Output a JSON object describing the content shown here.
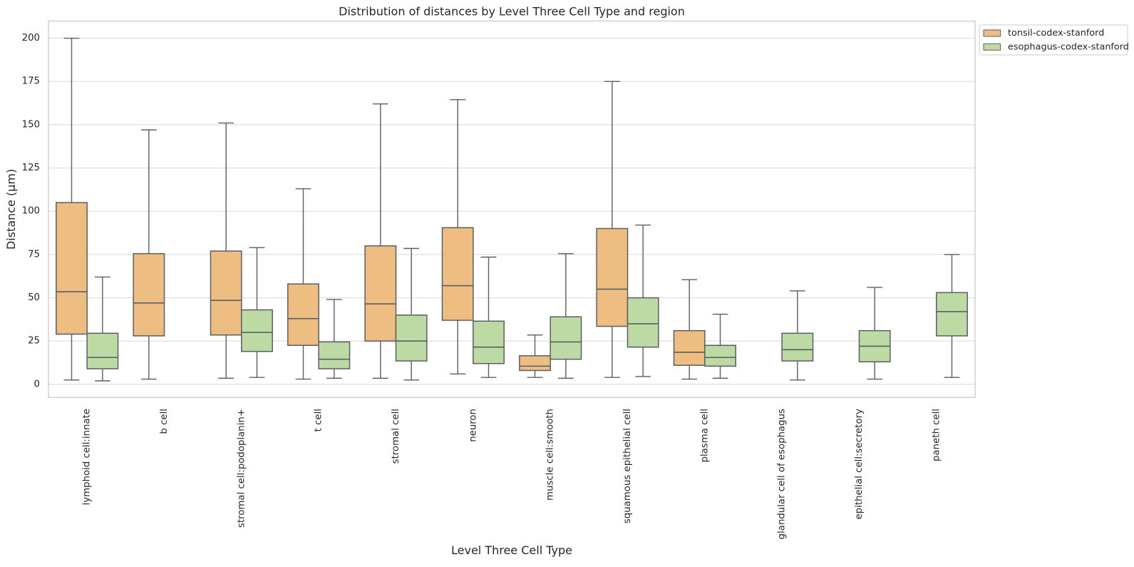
{
  "title": "Distribution of distances by Level Three Cell Type and region",
  "xlabel": "Level Three Cell Type",
  "ylabel": "Distance (μm)",
  "legend": {
    "items": [
      {
        "label": "tonsil-codex-stanford",
        "color": "#edbd82"
      },
      {
        "label": "esophagus-codex-stanford",
        "color": "#bedaa4"
      }
    ]
  },
  "colors": {
    "tonsil_fill": "#edbd82",
    "esophagus_fill": "#bedaa4",
    "box_edge": "#5a5f64",
    "grid": "#dcdcdc",
    "spine": "#c9cccd",
    "text": "#262626"
  },
  "chart_data": {
    "type": "box",
    "title": "Distribution of distances by Level Three Cell Type and region",
    "xlabel": "Level Three Cell Type",
    "ylabel": "Distance (μm)",
    "grid": "horizontal",
    "legend_position": "upper right outside",
    "ylim": [
      -7.6,
      209.9
    ],
    "yticks": [
      0,
      25,
      50,
      75,
      100,
      125,
      150,
      175,
      200
    ],
    "categories": [
      "lymphoid cell:innate",
      "b cell",
      "stromal cell:podoplanin+",
      "t cell",
      "stromal cell",
      "neuron",
      "muscle cell:smooth",
      "squamous epithelial cell",
      "plasma cell",
      "glandular cell of esophagus",
      "epithelial cell:secretory",
      "paneth cell"
    ],
    "series": [
      {
        "name": "tonsil-codex-stanford",
        "fill": "#edbd82",
        "boxes": [
          {
            "whislo": 2.5,
            "q1": 29,
            "med": 53.5,
            "q3": 105,
            "whishi": 200
          },
          {
            "whislo": 3,
            "q1": 28,
            "med": 47,
            "q3": 75.5,
            "whishi": 147
          },
          {
            "whislo": 3.5,
            "q1": 28.5,
            "med": 48.5,
            "q3": 77,
            "whishi": 151
          },
          {
            "whislo": 3,
            "q1": 22.5,
            "med": 38,
            "q3": 58,
            "whishi": 113
          },
          {
            "whislo": 3.5,
            "q1": 25,
            "med": 46.5,
            "q3": 80,
            "whishi": 162
          },
          {
            "whislo": 6,
            "q1": 37,
            "med": 57,
            "q3": 90.5,
            "whishi": 164.5
          },
          {
            "whislo": 4,
            "q1": 8,
            "med": 10.5,
            "q3": 16.5,
            "whishi": 28.5
          },
          {
            "whislo": 4,
            "q1": 33.5,
            "med": 55,
            "q3": 90,
            "whishi": 175
          },
          {
            "whislo": 3,
            "q1": 11,
            "med": 18.5,
            "q3": 31,
            "whishi": 60.5
          },
          null,
          null,
          null
        ]
      },
      {
        "name": "esophagus-codex-stanford",
        "fill": "#bedaa4",
        "boxes": [
          {
            "whislo": 2,
            "q1": 9,
            "med": 15.5,
            "q3": 29.5,
            "whishi": 62
          },
          null,
          {
            "whislo": 4,
            "q1": 19,
            "med": 30,
            "q3": 43,
            "whishi": 79
          },
          {
            "whislo": 3.5,
            "q1": 9,
            "med": 14.5,
            "q3": 24.5,
            "whishi": 49
          },
          {
            "whislo": 2.5,
            "q1": 13.5,
            "med": 25,
            "q3": 40,
            "whishi": 78.5
          },
          {
            "whislo": 4,
            "q1": 12,
            "med": 21.5,
            "q3": 36.5,
            "whishi": 73.5
          },
          {
            "whislo": 3.5,
            "q1": 14.5,
            "med": 24.5,
            "q3": 39,
            "whishi": 75.5
          },
          {
            "whislo": 4.5,
            "q1": 21.5,
            "med": 35,
            "q3": 50,
            "whishi": 92
          },
          {
            "whislo": 3.5,
            "q1": 10.5,
            "med": 15.5,
            "q3": 22.5,
            "whishi": 40.5
          },
          {
            "whislo": 2.5,
            "q1": 13.5,
            "med": 20,
            "q3": 29.5,
            "whishi": 54
          },
          {
            "whislo": 3,
            "q1": 13,
            "med": 22,
            "q3": 31,
            "whishi": 56
          },
          {
            "whislo": 4,
            "q1": 28,
            "med": 42,
            "q3": 53,
            "whishi": 75
          }
        ]
      }
    ]
  }
}
